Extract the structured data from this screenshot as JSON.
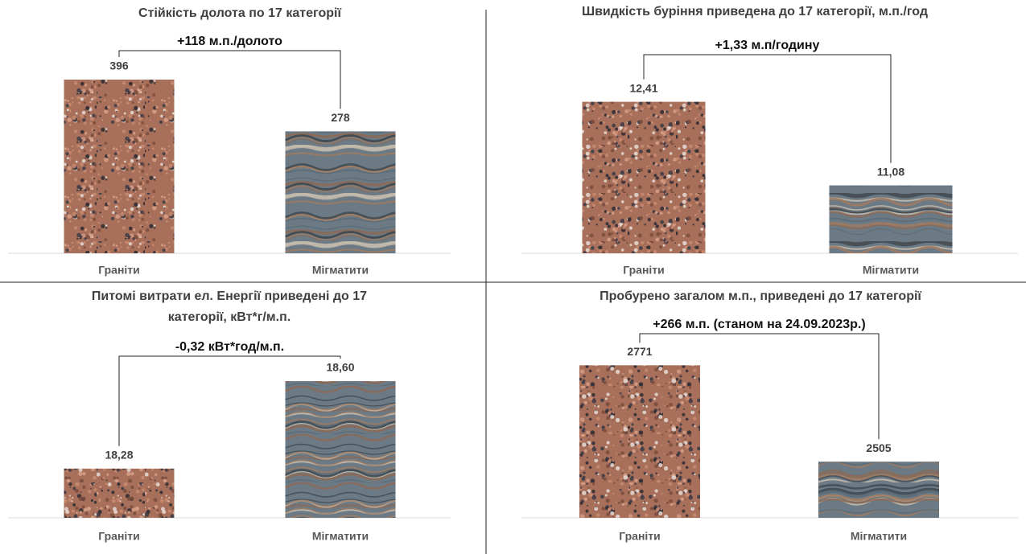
{
  "chart_data": [
    {
      "type": "bar",
      "title": "Стійкість долота по 17 категорії",
      "annotation": "+118 м.п./долото",
      "categories": [
        "Граніти",
        "Мігматити"
      ],
      "values": [
        396,
        278
      ],
      "colors": [
        "#a8705a",
        "#6b7a84"
      ],
      "ylim": [
        0,
        440
      ]
    },
    {
      "type": "bar",
      "title": "Швидкість буріння приведена до 17 категорії, м.п./год",
      "annotation": "+1,33 м.п/годину",
      "categories": [
        "Граніти",
        "Мігматити"
      ],
      "values": [
        12.41,
        11.08
      ],
      "value_labels": [
        "12,41",
        "11,08"
      ],
      "colors": [
        "#a8705a",
        "#6b7a84"
      ],
      "ylim": [
        10,
        12.75
      ]
    },
    {
      "type": "bar",
      "title": "Питомі витрати ел. Енергії приведені до 17 категорії, кВт*г/м.п.",
      "annotation": "-0,32 кВт*год/м.п.",
      "categories": [
        "Граніти",
        "Мігматити"
      ],
      "values": [
        18.28,
        18.6
      ],
      "value_labels": [
        "18,28",
        "18,60"
      ],
      "colors": [
        "#a8705a",
        "#6b7a84"
      ],
      "ylim": [
        18.1,
        18.7
      ]
    },
    {
      "type": "bar",
      "title": "Пробурено загалом м.п., приведені до 17 категорії",
      "annotation": "+266 м.п. (станом на 24.09.2023р.)",
      "categories": [
        "Граніти",
        "Мігматити"
      ],
      "values": [
        2771,
        2505
      ],
      "colors": [
        "#a8705a",
        "#6b7a84"
      ],
      "ylim": [
        2350,
        2825
      ]
    }
  ]
}
